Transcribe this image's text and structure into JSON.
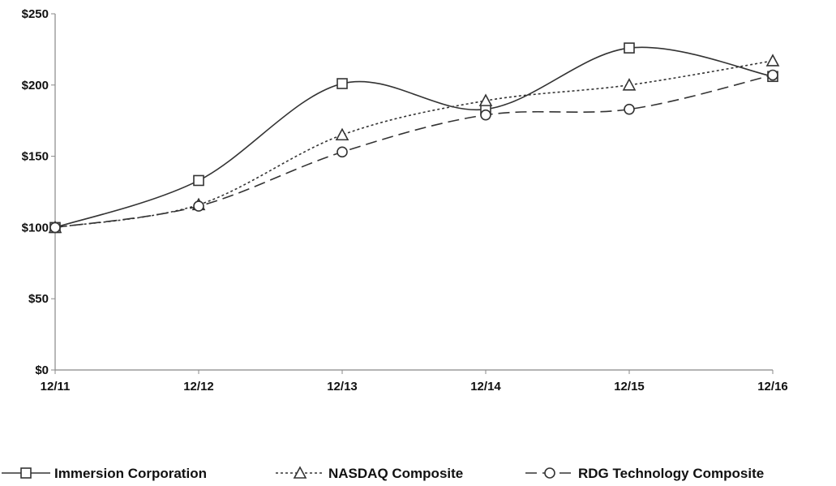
{
  "chart_data": {
    "type": "line",
    "categories": [
      "12/11",
      "12/12",
      "12/13",
      "12/14",
      "12/15",
      "12/16"
    ],
    "y_ticks": [
      "$0",
      "$50",
      "$100",
      "$150",
      "$200",
      "$250"
    ],
    "ylim": [
      0,
      250
    ],
    "grid": false,
    "legend_position": "bottom",
    "series": [
      {
        "name": "Immersion Corporation",
        "values": [
          100,
          133,
          201,
          183,
          226,
          206
        ],
        "marker": "square",
        "line_style": "solid",
        "color": "#333333"
      },
      {
        "name": "NASDAQ Composite",
        "values": [
          100,
          116,
          165,
          189,
          200,
          217
        ],
        "marker": "triangle",
        "line_style": "dotted",
        "color": "#333333"
      },
      {
        "name": "RDG Technology Composite",
        "values": [
          100,
          115,
          153,
          179,
          183,
          207
        ],
        "marker": "circle",
        "line_style": "dashed",
        "color": "#333333"
      }
    ]
  }
}
